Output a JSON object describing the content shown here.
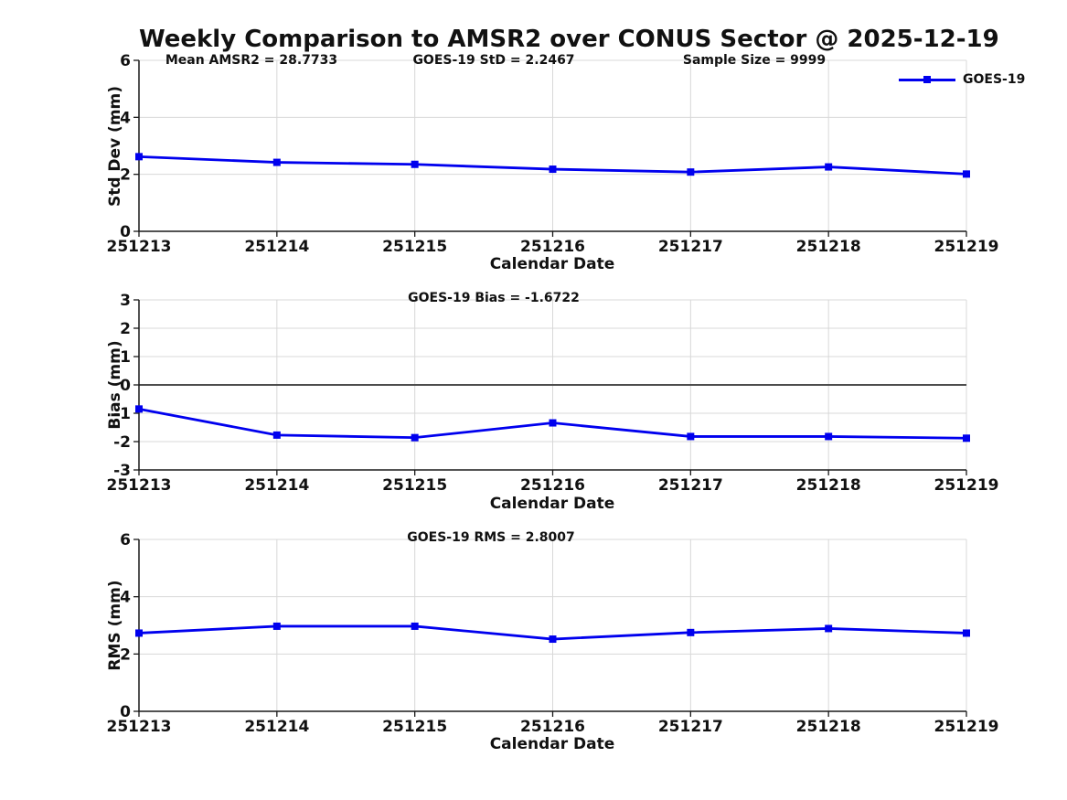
{
  "title": "Weekly Comparison to AMSR2 over CONUS Sector @ 2025-12-19",
  "legend": {
    "label": "GOES-19"
  },
  "colors": {
    "line": "#0000EE",
    "grid": "#D8D8D8",
    "axis": "#1A1A1A",
    "text": "#111111",
    "zero_line": "#4D4D4D",
    "background": "#FFFFFF"
  },
  "chart_data": [
    {
      "type": "line",
      "name": "std-dev",
      "categories": [
        "251213",
        "251214",
        "251215",
        "251216",
        "251217",
        "251218",
        "251219"
      ],
      "series": [
        {
          "name": "GOES-19",
          "values": [
            2.62,
            2.42,
            2.35,
            2.18,
            2.08,
            2.26,
            2.01
          ]
        }
      ],
      "xlabel": "Calendar Date",
      "ylabel": "Std Dev (mm)",
      "ylim": [
        0,
        6
      ],
      "yticks": [
        0,
        2,
        4,
        6
      ],
      "grid": true,
      "legend_position": "top-right-outside",
      "annotations": [
        {
          "text": "Mean AMSR2 = 28.7733"
        },
        {
          "text": "GOES-19 StD = 2.2467"
        },
        {
          "text": "Sample Size = 9999"
        }
      ]
    },
    {
      "type": "line",
      "name": "bias",
      "categories": [
        "251213",
        "251214",
        "251215",
        "251216",
        "251217",
        "251218",
        "251219"
      ],
      "series": [
        {
          "name": "GOES-19",
          "values": [
            -0.85,
            -1.77,
            -1.86,
            -1.34,
            -1.82,
            -1.82,
            -1.88
          ]
        }
      ],
      "xlabel": "Calendar Date",
      "ylabel": "Bias (mm)",
      "ylim": [
        -3,
        3
      ],
      "yticks": [
        -3,
        -2,
        -1,
        0,
        1,
        2,
        3
      ],
      "grid": true,
      "zero_line": true,
      "annotations": [
        {
          "text": "GOES-19 Bias  = -1.6722"
        }
      ]
    },
    {
      "type": "line",
      "name": "rms",
      "categories": [
        "251213",
        "251214",
        "251215",
        "251216",
        "251217",
        "251218",
        "251219"
      ],
      "series": [
        {
          "name": "GOES-19",
          "values": [
            2.73,
            2.97,
            2.97,
            2.52,
            2.75,
            2.89,
            2.73
          ]
        }
      ],
      "xlabel": "Calendar Date",
      "ylabel": "RMS (mm)",
      "ylim": [
        0,
        6
      ],
      "yticks": [
        0,
        2,
        4,
        6
      ],
      "grid": true,
      "annotations": [
        {
          "text": "GOES-19 RMS = 2.8007"
        }
      ]
    }
  ]
}
